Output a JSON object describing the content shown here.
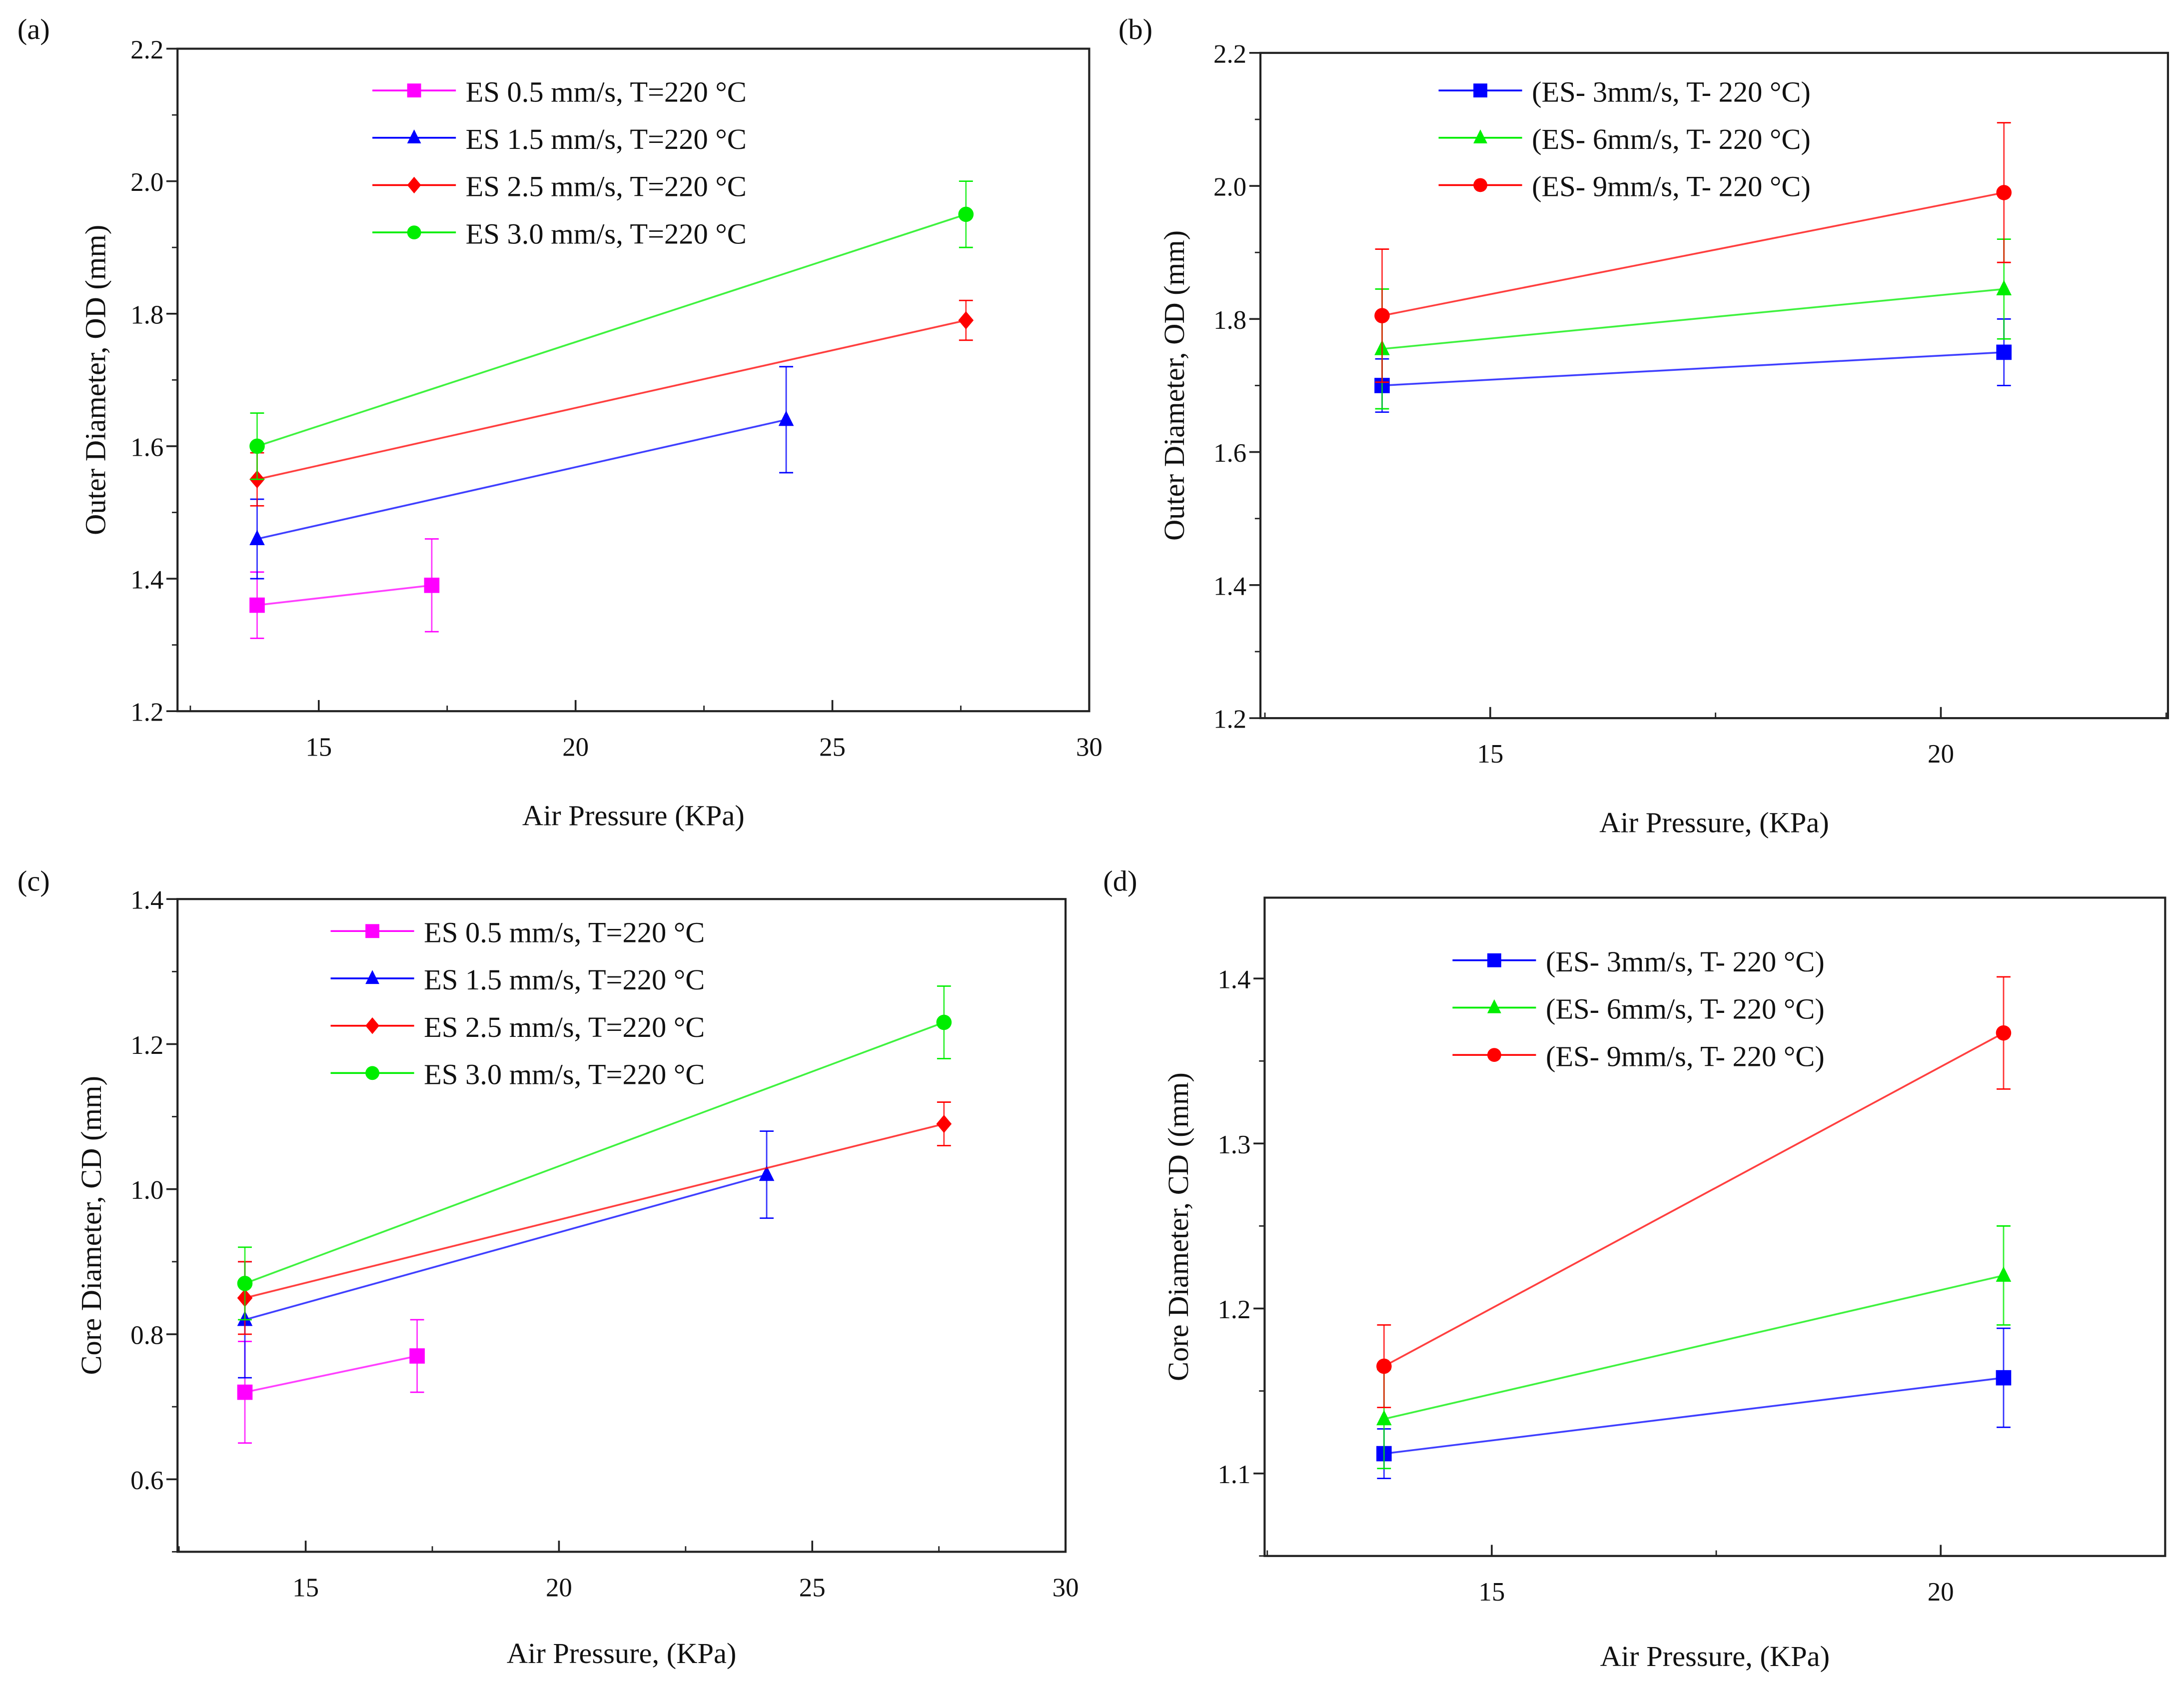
{
  "chart_data": [
    {
      "panel": "(a)",
      "type": "line",
      "xlabel": "Air Pressure (KPa)",
      "ylabel": "Outer Diameter, OD (mm)",
      "xlim": [
        12.25,
        30
      ],
      "ylim": [
        1.2,
        2.2
      ],
      "xticks": [
        15,
        20,
        25,
        30
      ],
      "xtick_labels": [
        "15",
        "20",
        "25",
        "30"
      ],
      "yticks": [
        1.2,
        1.4,
        1.6,
        1.8,
        2.0,
        2.2
      ],
      "ytick_labels": [
        "1.2",
        "1.4",
        "1.6",
        "1.8",
        "2.0",
        "2.2"
      ],
      "legend": "top-left",
      "series": [
        {
          "name": "ES 0.5 mm/s, T=220 °C",
          "color": "#ff00ff",
          "marker": "square",
          "x": [
            13.8,
            17.2
          ],
          "y": [
            1.36,
            1.39
          ],
          "err": [
            0.05,
            0.07
          ]
        },
        {
          "name": "ES 1.5 mm/s, T=220 °C",
          "color": "#0000ff",
          "marker": "triangle",
          "x": [
            13.8,
            24.1
          ],
          "y": [
            1.46,
            1.64
          ],
          "err": [
            0.06,
            0.08
          ]
        },
        {
          "name": "ES 2.5 mm/s, T=220 °C",
          "color": "#ff0000",
          "marker": "diamond",
          "x": [
            13.8,
            27.6
          ],
          "y": [
            1.55,
            1.79
          ],
          "err": [
            0.04,
            0.03
          ]
        },
        {
          "name": "ES 3.0 mm/s, T=220 °C",
          "color": "#00ee00",
          "marker": "circle",
          "x": [
            13.8,
            27.6
          ],
          "y": [
            1.6,
            1.95
          ],
          "err": [
            0.05,
            0.05
          ]
        }
      ]
    },
    {
      "panel": "(b)",
      "type": "line",
      "xlabel": "Air Pressure, (KPa)",
      "ylabel": "Outer Diameter, OD (mm)",
      "xlim": [
        12.45,
        22.52
      ],
      "ylim": [
        1.2,
        2.2
      ],
      "xticks": [
        15,
        20
      ],
      "xtick_labels": [
        "15",
        "20"
      ],
      "yticks": [
        1.2,
        1.4,
        1.6,
        1.8,
        2.0,
        2.2
      ],
      "ytick_labels": [
        "1.2",
        "1.4",
        "1.6",
        "1.8",
        "2.0",
        "2.2"
      ],
      "legend": "top-center",
      "series": [
        {
          "name": "(ES- 3mm/s, T- 220 °C)",
          "color": "#0000ff",
          "marker": "square",
          "x": [
            13.8,
            20.7
          ],
          "y": [
            1.7,
            1.75
          ],
          "err": [
            0.04,
            0.05
          ]
        },
        {
          "name": "(ES- 6mm/s, T- 220 °C)",
          "color": "#00ee00",
          "marker": "triangle",
          "x": [
            13.8,
            20.7
          ],
          "y": [
            1.755,
            1.845
          ],
          "err": [
            0.09,
            0.075
          ]
        },
        {
          "name": "(ES- 9mm/s, T- 220 °C)",
          "color": "#ff0000",
          "marker": "circle",
          "x": [
            13.8,
            20.7
          ],
          "y": [
            1.805,
            1.99
          ],
          "err": [
            0.1,
            0.105
          ]
        }
      ]
    },
    {
      "panel": "(c)",
      "type": "line",
      "xlabel": "Air Pressure, (KPa)",
      "ylabel": "Core Diameter, CD (mm)",
      "xlim": [
        12.47,
        30
      ],
      "ylim": [
        0.5,
        1.4
      ],
      "xticks": [
        15,
        20,
        25,
        30
      ],
      "xtick_labels": [
        "15",
        "20",
        "25",
        "30"
      ],
      "yticks": [
        0.6,
        0.8,
        1.0,
        1.2,
        1.4
      ],
      "ytick_labels": [
        "0.6",
        "0.8",
        "1.0",
        "1.2",
        "1.4"
      ],
      "legend": "top-left",
      "series": [
        {
          "name": "ES 0.5 mm/s, T=220 °C",
          "color": "#ff00ff",
          "marker": "square",
          "x": [
            13.8,
            17.2
          ],
          "y": [
            0.72,
            0.77
          ],
          "err": [
            0.07,
            0.05
          ]
        },
        {
          "name": "ES 1.5 mm/s, T=220 °C",
          "color": "#0000ff",
          "marker": "triangle",
          "x": [
            13.8,
            24.1
          ],
          "y": [
            0.82,
            1.02
          ],
          "err": [
            0.08,
            0.06
          ]
        },
        {
          "name": "ES 2.5 mm/s, T=220 °C",
          "color": "#ff0000",
          "marker": "diamond",
          "x": [
            13.8,
            27.6
          ],
          "y": [
            0.85,
            1.09
          ],
          "err": [
            0.05,
            0.03
          ]
        },
        {
          "name": "ES 3.0 mm/s, T=220 °C",
          "color": "#00ee00",
          "marker": "circle",
          "x": [
            13.8,
            27.6
          ],
          "y": [
            0.87,
            1.23
          ],
          "err": [
            0.05,
            0.05
          ]
        }
      ]
    },
    {
      "panel": "(d)",
      "type": "line",
      "xlabel": "Air Pressure, (KPa)",
      "ylabel": "Core Diameter, CD ((mm)",
      "xlim": [
        12.47,
        22.5
      ],
      "ylim": [
        1.05,
        1.449
      ],
      "xticks": [
        15,
        20
      ],
      "xtick_labels": [
        "15",
        "20"
      ],
      "yticks": [
        1.1,
        1.2,
        1.3,
        1.4
      ],
      "ytick_labels": [
        "1.1",
        "1.2",
        "1.3",
        "1.4"
      ],
      "legend": "top-center",
      "series": [
        {
          "name": "(ES- 3mm/s, T- 220 °C)",
          "color": "#0000ff",
          "marker": "square",
          "x": [
            13.8,
            20.7
          ],
          "y": [
            1.112,
            1.158
          ],
          "err": [
            0.015,
            0.03
          ]
        },
        {
          "name": "(ES- 6mm/s, T- 220 °C)",
          "color": "#00ee00",
          "marker": "triangle",
          "x": [
            13.8,
            20.7
          ],
          "y": [
            1.133,
            1.22
          ],
          "err": [
            0.03,
            0.03
          ]
        },
        {
          "name": "(ES- 9mm/s, T- 220 °C)",
          "color": "#ff0000",
          "marker": "circle",
          "x": [
            13.8,
            20.7
          ],
          "y": [
            1.165,
            1.367
          ],
          "err": [
            0.025,
            0.034
          ]
        }
      ]
    }
  ]
}
